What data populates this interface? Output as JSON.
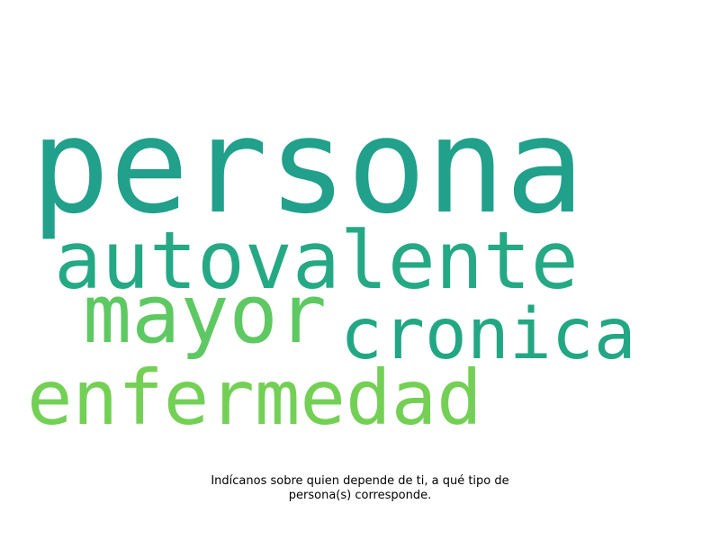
{
  "chart_data": {
    "type": "wordcloud",
    "words": [
      {
        "text": "persona",
        "weight": 1.0,
        "color": "#21a08b"
      },
      {
        "text": "autovalente",
        "weight": 0.6,
        "color": "#25a985"
      },
      {
        "text": "mayor",
        "weight": 0.6,
        "color": "#5ec962"
      },
      {
        "text": "cronica",
        "weight": 0.53,
        "color": "#22a784"
      },
      {
        "text": "enfermedad",
        "weight": 0.57,
        "color": "#73d055"
      }
    ]
  },
  "caption": {
    "line1": "Indícanos sobre quien depende de ti, a qué tipo de",
    "line2": "persona(s) corresponde."
  }
}
